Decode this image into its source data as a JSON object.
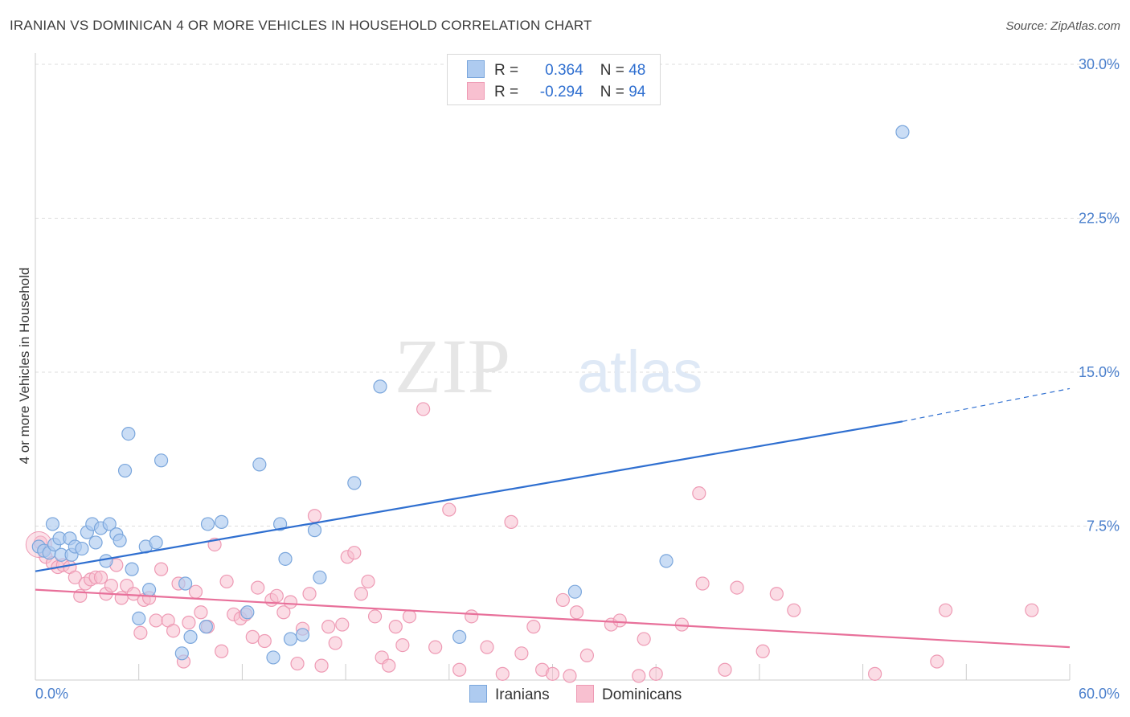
{
  "title": "IRANIAN VS DOMINICAN 4 OR MORE VEHICLES IN HOUSEHOLD CORRELATION CHART",
  "source": "Source: ZipAtlas.com",
  "watermark": {
    "zip": "ZIP",
    "atlas": "atlas"
  },
  "legend": {
    "r_label": "R =",
    "n_label": "N =",
    "iranians": {
      "r": "0.364",
      "n": "48"
    },
    "dominicans": {
      "r": "-0.294",
      "n": "94"
    }
  },
  "bottom_legend": {
    "iranians": "Iranians",
    "dominicans": "Dominicans"
  },
  "colors": {
    "iranians_fill": "#aecbf0",
    "iranians_stroke": "#7aa6dc",
    "iranians_line": "#2f6fd0",
    "dominicans_fill": "#f8c0d0",
    "dominicans_stroke": "#ee9ab4",
    "dominicans_line": "#e8709a"
  },
  "chart_data": {
    "type": "scatter",
    "title": "IRANIAN VS DOMINICAN 4 OR MORE VEHICLES IN HOUSEHOLD CORRELATION CHART",
    "xlabel": "",
    "ylabel": "4 or more Vehicles in Household",
    "xlim": [
      0,
      60
    ],
    "ylim": [
      0,
      30
    ],
    "x_tick_labels": [
      "0.0%",
      "60.0%"
    ],
    "y_ticks": [
      7.5,
      15.0,
      22.5,
      30.0
    ],
    "y_tick_labels": [
      "7.5%",
      "15.0%",
      "22.5%",
      "30.0%"
    ],
    "grid": true,
    "series": [
      {
        "name": "Iranians",
        "points": [
          [
            0.2,
            6.5
          ],
          [
            0.5,
            6.3
          ],
          [
            0.8,
            6.2
          ],
          [
            1.0,
            7.6
          ],
          [
            1.1,
            6.6
          ],
          [
            1.4,
            6.9
          ],
          [
            1.5,
            6.1
          ],
          [
            2.0,
            6.9
          ],
          [
            2.1,
            6.1
          ],
          [
            2.3,
            6.5
          ],
          [
            2.7,
            6.4
          ],
          [
            3.0,
            7.2
          ],
          [
            3.3,
            7.6
          ],
          [
            3.5,
            6.7
          ],
          [
            3.8,
            7.4
          ],
          [
            4.1,
            5.8
          ],
          [
            4.3,
            7.6
          ],
          [
            4.7,
            7.1
          ],
          [
            4.9,
            6.8
          ],
          [
            5.2,
            10.2
          ],
          [
            5.4,
            12.0
          ],
          [
            5.6,
            5.4
          ],
          [
            6.0,
            3.0
          ],
          [
            6.4,
            6.5
          ],
          [
            6.6,
            4.4
          ],
          [
            7.0,
            6.7
          ],
          [
            7.3,
            10.7
          ],
          [
            8.5,
            1.3
          ],
          [
            8.7,
            4.7
          ],
          [
            9.0,
            2.1
          ],
          [
            9.9,
            2.6
          ],
          [
            10.0,
            7.6
          ],
          [
            10.8,
            7.7
          ],
          [
            12.3,
            3.3
          ],
          [
            13.0,
            10.5
          ],
          [
            13.8,
            1.1
          ],
          [
            14.2,
            7.6
          ],
          [
            14.5,
            5.9
          ],
          [
            14.8,
            2.0
          ],
          [
            15.5,
            2.2
          ],
          [
            16.2,
            7.3
          ],
          [
            16.5,
            5.0
          ],
          [
            18.5,
            9.6
          ],
          [
            20.0,
            14.3
          ],
          [
            24.6,
            2.1
          ],
          [
            31.3,
            4.3
          ],
          [
            36.6,
            5.8
          ],
          [
            50.3,
            26.7
          ]
        ]
      },
      {
        "name": "Dominicans",
        "points": [
          [
            0.3,
            6.7
          ],
          [
            0.6,
            6.0
          ],
          [
            1.0,
            5.7
          ],
          [
            1.3,
            5.5
          ],
          [
            1.6,
            5.6
          ],
          [
            2.0,
            5.5
          ],
          [
            2.3,
            5.0
          ],
          [
            2.6,
            4.1
          ],
          [
            2.9,
            4.7
          ],
          [
            3.2,
            4.9
          ],
          [
            3.5,
            5.0
          ],
          [
            3.8,
            5.0
          ],
          [
            4.1,
            4.2
          ],
          [
            4.4,
            4.6
          ],
          [
            4.7,
            5.6
          ],
          [
            5.0,
            4.0
          ],
          [
            5.3,
            4.6
          ],
          [
            5.7,
            4.2
          ],
          [
            6.1,
            2.3
          ],
          [
            6.3,
            3.9
          ],
          [
            6.6,
            4.0
          ],
          [
            7.0,
            2.9
          ],
          [
            7.3,
            5.4
          ],
          [
            7.7,
            2.9
          ],
          [
            8.0,
            2.4
          ],
          [
            8.3,
            4.7
          ],
          [
            8.6,
            0.9
          ],
          [
            8.9,
            2.8
          ],
          [
            9.3,
            4.3
          ],
          [
            9.6,
            3.3
          ],
          [
            10.0,
            2.6
          ],
          [
            10.4,
            6.6
          ],
          [
            10.8,
            1.4
          ],
          [
            11.1,
            4.8
          ],
          [
            11.5,
            3.2
          ],
          [
            11.9,
            3.0
          ],
          [
            12.2,
            3.2
          ],
          [
            12.6,
            2.1
          ],
          [
            12.9,
            4.5
          ],
          [
            13.3,
            1.9
          ],
          [
            13.7,
            3.9
          ],
          [
            14.0,
            4.1
          ],
          [
            14.4,
            3.3
          ],
          [
            14.8,
            3.8
          ],
          [
            15.2,
            0.8
          ],
          [
            15.5,
            2.5
          ],
          [
            15.9,
            4.2
          ],
          [
            16.2,
            8.0
          ],
          [
            16.6,
            0.7
          ],
          [
            17.0,
            2.6
          ],
          [
            17.4,
            1.8
          ],
          [
            17.8,
            2.7
          ],
          [
            18.1,
            6.0
          ],
          [
            18.5,
            6.2
          ],
          [
            18.9,
            4.2
          ],
          [
            19.3,
            4.8
          ],
          [
            19.7,
            3.1
          ],
          [
            20.1,
            1.1
          ],
          [
            20.5,
            0.7
          ],
          [
            20.9,
            2.6
          ],
          [
            21.3,
            1.7
          ],
          [
            21.7,
            3.1
          ],
          [
            22.5,
            13.2
          ],
          [
            23.2,
            1.6
          ],
          [
            24.0,
            8.3
          ],
          [
            24.6,
            0.5
          ],
          [
            25.3,
            3.1
          ],
          [
            26.2,
            1.6
          ],
          [
            27.1,
            0.3
          ],
          [
            27.6,
            7.7
          ],
          [
            28.2,
            1.3
          ],
          [
            28.9,
            2.6
          ],
          [
            29.4,
            0.5
          ],
          [
            30.0,
            0.3
          ],
          [
            30.6,
            3.9
          ],
          [
            31.0,
            0.2
          ],
          [
            31.4,
            3.3
          ],
          [
            32.0,
            1.2
          ],
          [
            33.4,
            2.7
          ],
          [
            33.9,
            2.9
          ],
          [
            35.0,
            0.2
          ],
          [
            35.3,
            2.0
          ],
          [
            36.0,
            0.3
          ],
          [
            37.5,
            2.7
          ],
          [
            38.5,
            9.1
          ],
          [
            38.7,
            4.7
          ],
          [
            40.0,
            0.5
          ],
          [
            40.7,
            4.5
          ],
          [
            42.2,
            1.4
          ],
          [
            43.0,
            4.2
          ],
          [
            44.0,
            3.4
          ],
          [
            48.7,
            0.3
          ],
          [
            52.3,
            0.9
          ],
          [
            52.8,
            3.4
          ],
          [
            57.8,
            3.4
          ]
        ]
      }
    ],
    "trendlines": [
      {
        "series": "Iranians",
        "solid_from": [
          0,
          5.3
        ],
        "solid_to": [
          50.3,
          12.6
        ],
        "dashed_to": [
          60,
          14.2
        ]
      },
      {
        "series": "Dominicans",
        "from": [
          0,
          4.4
        ],
        "to": [
          60,
          1.6
        ]
      }
    ]
  }
}
